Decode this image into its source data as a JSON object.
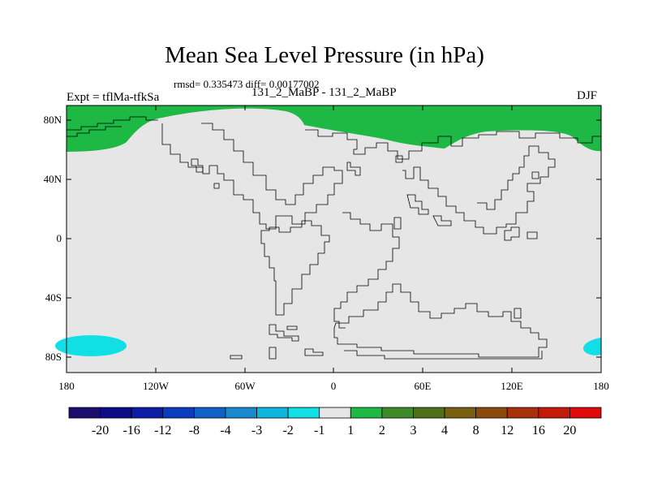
{
  "title": "Mean Sea Level Pressure (in hPa)",
  "stats": "rmsd= 0.335473 diff= 0.00177002",
  "experiment_label": "Expt = tflMa-tfkSa",
  "cases_label": "131_2_MaBP - 131_2_MaBP",
  "season": "DJF",
  "lat_ticks": [
    "80N",
    "40N",
    "0",
    "40S",
    "80S"
  ],
  "lon_ticks": [
    "180",
    "120W",
    "60W",
    "0",
    "60E",
    "120E",
    "180"
  ],
  "colorbar": {
    "colors": [
      "#1a0f6e",
      "#0c0c87",
      "#0c1ea8",
      "#0a3cc0",
      "#1060c8",
      "#1a88cc",
      "#10b4e0",
      "#10e0e6",
      "#e6e6e6",
      "#1eb844",
      "#3e8a28",
      "#4e7018",
      "#786010",
      "#8c4a0a",
      "#a8300a",
      "#c41a0a",
      "#e00a0a"
    ],
    "labels": [
      "-20",
      "-16",
      "-12",
      "-8",
      "-4",
      "-3",
      "-2",
      "-1",
      "1",
      "2",
      "3",
      "4",
      "8",
      "12",
      "16",
      "20"
    ]
  },
  "colors": {
    "background_field": "#e6e6e6",
    "positive_anomaly": "#1eb844",
    "negative_anomaly": "#10e0e6"
  }
}
